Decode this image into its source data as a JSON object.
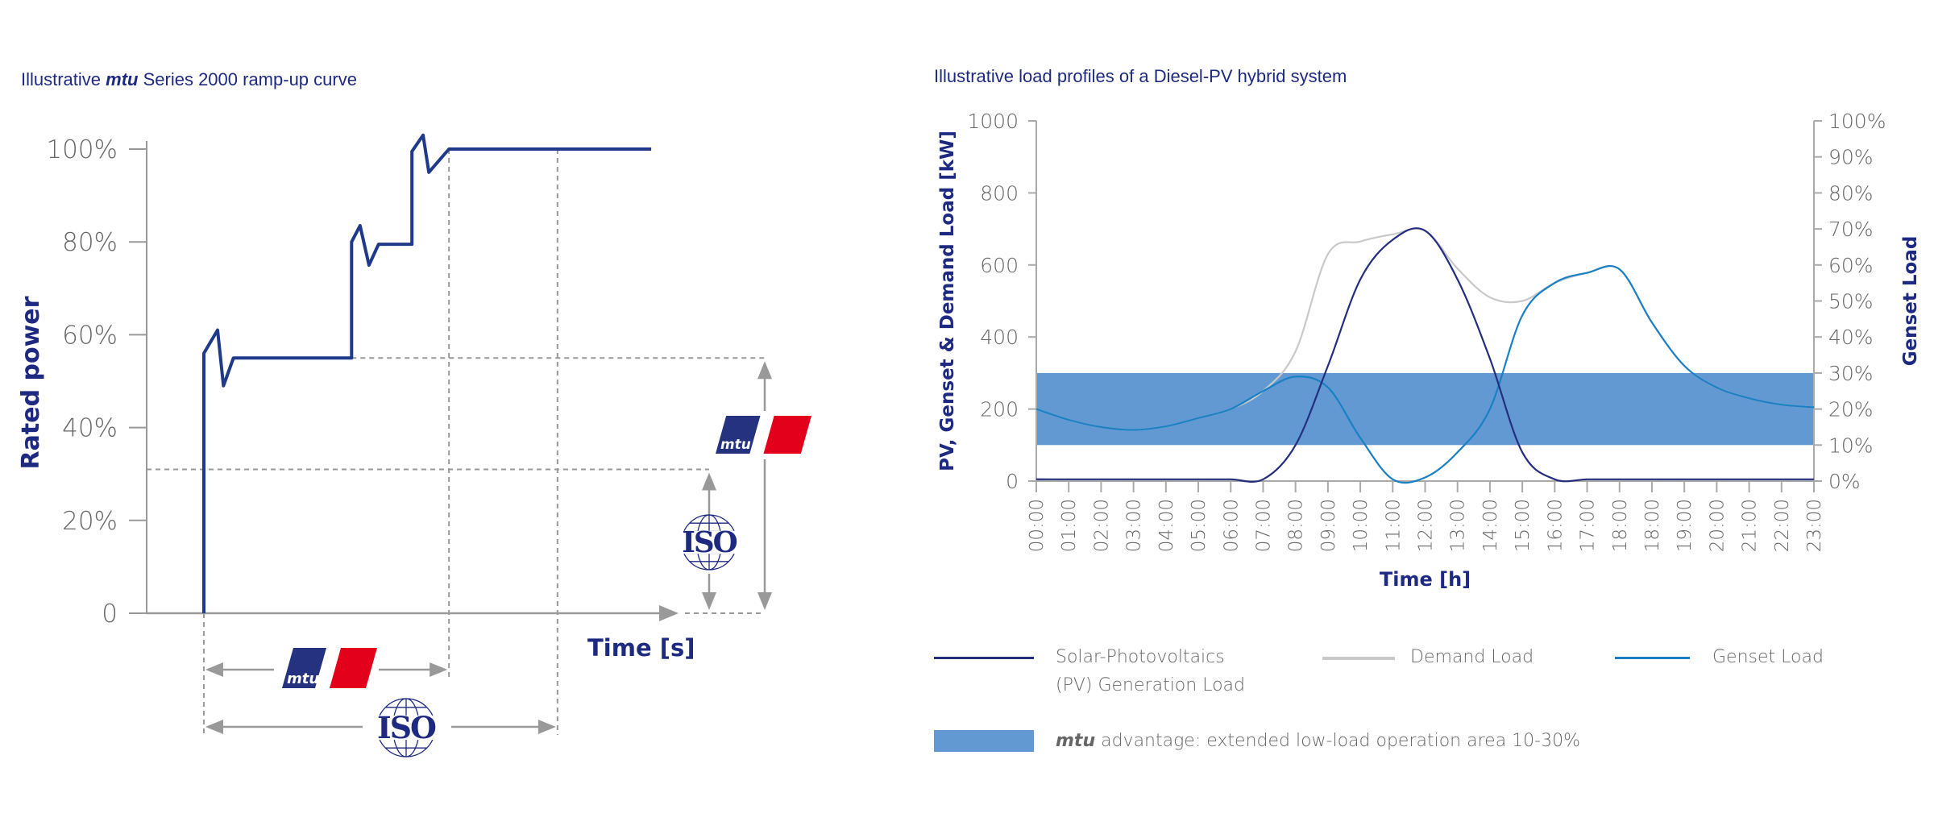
{
  "left": {
    "title_pre": "Illustrative ",
    "title_brand": "mtu",
    "title_post": " Series 2000 ramp-up curve",
    "logos": {
      "mtu": "mtu",
      "iso": "ISO"
    }
  },
  "right": {
    "title": "Illustrative load profiles of a Diesel-PV hybrid system",
    "legend": {
      "pv_line1": "Solar-Photovoltaics",
      "pv_line2": "(PV) Generation Load",
      "demand": "Demand Load",
      "genset": "Genset Load",
      "band_brand": "mtu",
      "band_text": " advantage: extended low-load operation area 10-30%"
    }
  },
  "colors": {
    "navy": "#1e2a82",
    "curve": "#1f3a8a",
    "genset": "#1a80c4",
    "demand": "#c9c9c9",
    "pv": "#252e7e",
    "band": "#6399d2",
    "mtu_red": "#e2001a",
    "mtu_blue": "#25327f",
    "grid_dash": "#999999"
  },
  "chart_data": [
    {
      "type": "line",
      "title": "Illustrative mtu Series 2000 ramp-up curve",
      "ylabel": "Rated power",
      "xlabel": "Time [s]",
      "ylim": [
        0,
        100
      ],
      "yticks": [
        "0",
        "20%",
        "40%",
        "60%",
        "80%",
        "100%"
      ],
      "ytick_values": [
        0,
        20,
        40,
        60,
        80,
        100
      ],
      "x_unit": "arbitrary time (no tick labels)",
      "series": [
        {
          "points": [
            [
              10.8,
              0
            ],
            [
              10.8,
              56
            ],
            [
              13.4,
              61
            ],
            [
              14.5,
              49
            ],
            [
              16.4,
              55
            ],
            [
              38.7,
              55
            ],
            [
              38.7,
              80
            ],
            [
              40.3,
              83.5
            ],
            [
              42,
              75
            ],
            [
              43.8,
              79.5
            ],
            [
              50.1,
              79.5
            ],
            [
              50.1,
              99.5
            ],
            [
              52.2,
              103
            ],
            [
              53.3,
              95
            ],
            [
              57.1,
              100
            ],
            [
              95.3,
              100
            ]
          ]
        }
      ],
      "annotations": {
        "mtu_time_to_full_load": 57.1,
        "iso_time_to_full_load": 77.6,
        "mtu_first_load_step_pct": 55,
        "iso_first_load_step_pct": 31
      }
    },
    {
      "type": "line",
      "title": "Illustrative load profiles of a Diesel-PV hybrid system",
      "xlabel": "Time [h]",
      "ylabel": "PV, Genset & Demand Load [kW]",
      "ylabel_right": "Genset Load",
      "ylim": [
        0,
        1000
      ],
      "ylim_right": [
        0,
        100
      ],
      "yticks": [
        "0",
        "200",
        "400",
        "600",
        "800",
        "1000"
      ],
      "yticks_right": [
        "0%",
        "10%",
        "20%",
        "30%",
        "40%",
        "50%",
        "60%",
        "70%",
        "80%",
        "90%",
        "100%"
      ],
      "categories": [
        "00:00",
        "01:00",
        "02:00",
        "03:00",
        "04:00",
        "05:00",
        "06:00",
        "07:00",
        "08:00",
        "09:00",
        "10:00",
        "11:00",
        "12:00",
        "13:00",
        "14:00",
        "15:00",
        "16:00",
        "17:00",
        "18:00",
        "18:00",
        "19:00",
        "20:00",
        "21:00",
        "22:00",
        "23:00"
      ],
      "series": [
        {
          "name": "Demand Load",
          "values": [
            200,
            170,
            150,
            142,
            152,
            175,
            200,
            250,
            360,
            630,
            665,
            685,
            695,
            590,
            510,
            500,
            550,
            578,
            588,
            440,
            320,
            260,
            230,
            212,
            205
          ]
        },
        {
          "name": "Genset Load",
          "values": [
            200,
            170,
            150,
            142,
            152,
            175,
            200,
            250,
            290,
            260,
            120,
            5,
            10,
            80,
            200,
            460,
            550,
            578,
            588,
            440,
            320,
            260,
            230,
            212,
            205
          ]
        },
        {
          "name": "Solar-Photovoltaics (PV) Generation Load",
          "values": [
            5,
            5,
            5,
            5,
            5,
            5,
            5,
            5,
            100,
            320,
            560,
            670,
            695,
            560,
            340,
            80,
            5,
            5,
            5,
            5,
            5,
            5,
            5,
            5,
            5
          ]
        }
      ],
      "band": {
        "name": "mtu advantage: extended low-load operation area 10-30%",
        "from_pct": 10,
        "to_pct": 30
      },
      "legend_position": "bottom"
    }
  ]
}
